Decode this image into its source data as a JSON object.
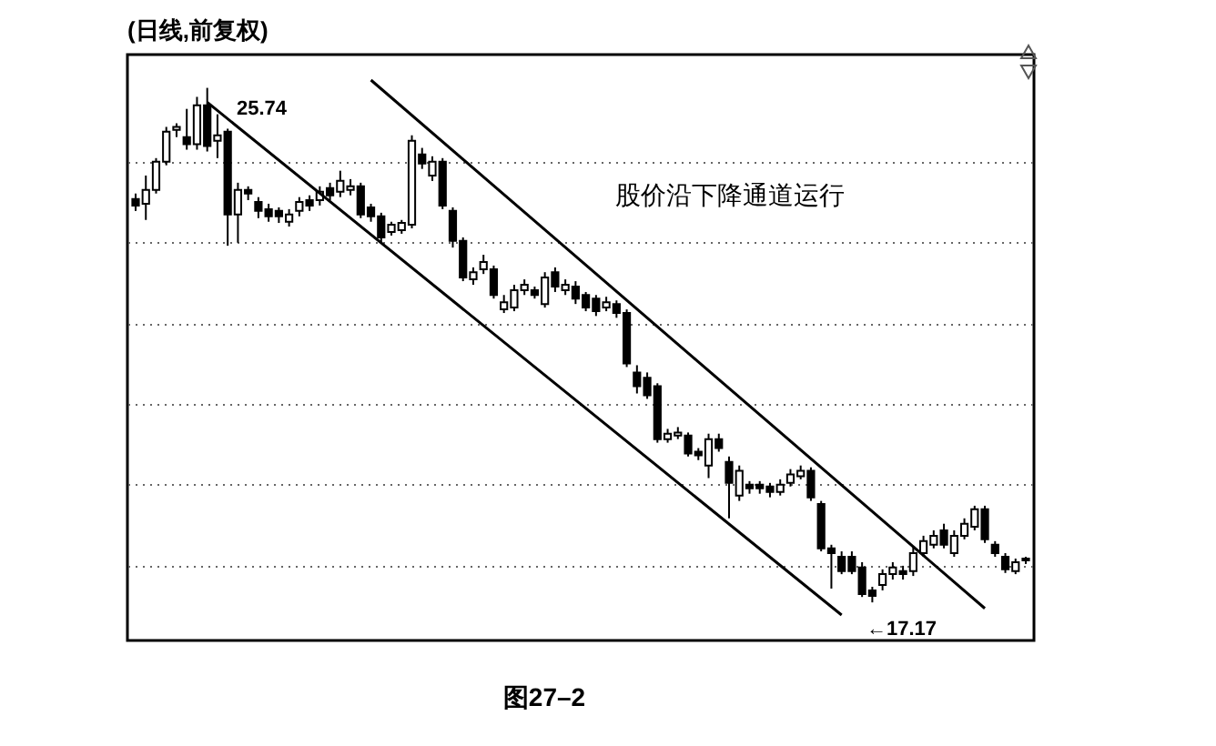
{
  "chart_data": {
    "type": "candlestick",
    "title": "(日线,前复权)",
    "color": "#000000",
    "grid": "y",
    "categories": [
      null,
      null,
      null,
      null,
      null,
      null,
      null,
      null,
      null,
      null,
      null,
      null,
      null,
      null,
      null,
      null,
      null,
      null,
      null,
      null,
      null,
      null,
      null,
      null,
      null,
      null,
      null,
      null,
      null,
      null,
      null,
      null,
      null,
      null,
      null,
      null,
      null,
      null,
      null,
      null,
      null,
      null,
      null,
      null,
      null,
      null,
      null,
      null,
      null,
      null,
      null,
      null,
      null,
      null,
      null,
      null,
      null,
      null,
      null,
      null,
      null,
      null,
      null,
      null,
      null,
      null,
      null,
      null,
      null,
      null,
      null,
      null,
      null,
      null,
      null,
      null,
      null,
      null,
      null,
      null,
      null,
      null,
      null,
      null,
      null,
      null,
      null,
      null
    ],
    "ohlc": [
      [
        23.89,
        23.98,
        23.69,
        23.78
      ],
      [
        23.81,
        24.28,
        23.54,
        24.04
      ],
      [
        24.04,
        24.57,
        23.98,
        24.51
      ],
      [
        24.51,
        25.09,
        24.45,
        25.01
      ],
      [
        25.04,
        25.15,
        24.92,
        25.09
      ],
      [
        24.92,
        25.39,
        24.71,
        24.8
      ],
      [
        24.8,
        25.59,
        24.71,
        25.45
      ],
      [
        25.45,
        25.74,
        24.68,
        24.77
      ],
      [
        24.86,
        25.3,
        24.57,
        24.95
      ],
      [
        25.01,
        25.06,
        23.11,
        23.63
      ],
      [
        23.63,
        24.16,
        23.16,
        24.04
      ],
      [
        24.04,
        24.1,
        23.87,
        23.98
      ],
      [
        23.84,
        23.92,
        23.57,
        23.69
      ],
      [
        23.72,
        23.81,
        23.51,
        23.6
      ],
      [
        23.69,
        23.75,
        23.49,
        23.6
      ],
      [
        23.51,
        23.72,
        23.43,
        23.63
      ],
      [
        23.69,
        23.92,
        23.6,
        23.84
      ],
      [
        23.87,
        23.95,
        23.69,
        23.78
      ],
      [
        23.87,
        24.1,
        23.78,
        24.01
      ],
      [
        24.07,
        24.16,
        23.87,
        23.95
      ],
      [
        24.01,
        24.36,
        23.92,
        24.19
      ],
      [
        24.04,
        24.22,
        23.95,
        24.1
      ],
      [
        24.1,
        24.16,
        23.57,
        23.63
      ],
      [
        23.75,
        23.81,
        23.51,
        23.6
      ],
      [
        23.6,
        23.66,
        23.16,
        23.25
      ],
      [
        23.34,
        23.51,
        23.28,
        23.46
      ],
      [
        23.37,
        23.54,
        23.31,
        23.49
      ],
      [
        23.46,
        24.95,
        23.4,
        24.86
      ],
      [
        24.63,
        24.74,
        24.39,
        24.48
      ],
      [
        24.28,
        24.6,
        24.19,
        24.51
      ],
      [
        24.51,
        24.57,
        23.72,
        23.78
      ],
      [
        23.69,
        23.75,
        23.08,
        23.19
      ],
      [
        23.19,
        23.25,
        22.52,
        22.58
      ],
      [
        22.55,
        22.75,
        22.46,
        22.67
      ],
      [
        22.72,
        22.96,
        22.64,
        22.84
      ],
      [
        22.72,
        22.78,
        22.23,
        22.29
      ],
      [
        22.05,
        22.29,
        21.99,
        22.17
      ],
      [
        22.08,
        22.46,
        22.02,
        22.37
      ],
      [
        22.37,
        22.55,
        22.29,
        22.46
      ],
      [
        22.37,
        22.43,
        22.23,
        22.29
      ],
      [
        22.14,
        22.67,
        22.08,
        22.58
      ],
      [
        22.67,
        22.75,
        22.34,
        22.43
      ],
      [
        22.37,
        22.55,
        22.29,
        22.46
      ],
      [
        22.43,
        22.52,
        22.14,
        22.23
      ],
      [
        22.29,
        22.34,
        22.02,
        22.08
      ],
      [
        22.23,
        22.29,
        21.94,
        22.02
      ],
      [
        22.08,
        22.26,
        22.02,
        22.17
      ],
      [
        22.14,
        22.2,
        21.91,
        21.99
      ],
      [
        21.99,
        22.05,
        21.09,
        21.15
      ],
      [
        21.0,
        21.12,
        20.65,
        20.77
      ],
      [
        20.91,
        21.0,
        20.56,
        20.62
      ],
      [
        20.77,
        20.82,
        19.83,
        19.89
      ],
      [
        19.89,
        20.06,
        19.83,
        19.98
      ],
      [
        19.95,
        20.09,
        19.89,
        20.0
      ],
      [
        19.95,
        20.0,
        19.6,
        19.65
      ],
      [
        19.68,
        19.74,
        19.54,
        19.62
      ],
      [
        19.45,
        19.98,
        19.24,
        19.89
      ],
      [
        19.89,
        19.98,
        19.68,
        19.74
      ],
      [
        19.51,
        19.6,
        18.57,
        19.16
      ],
      [
        18.95,
        19.45,
        18.86,
        19.36
      ],
      [
        19.13,
        19.19,
        18.98,
        19.07
      ],
      [
        19.13,
        19.19,
        18.98,
        19.07
      ],
      [
        19.1,
        19.16,
        18.92,
        19.01
      ],
      [
        19.01,
        19.22,
        18.95,
        19.13
      ],
      [
        19.16,
        19.39,
        19.1,
        19.3
      ],
      [
        19.27,
        19.45,
        19.22,
        19.36
      ],
      [
        19.36,
        19.42,
        18.86,
        18.92
      ],
      [
        18.81,
        18.86,
        18.02,
        18.07
      ],
      [
        18.07,
        18.13,
        17.4,
        17.99
      ],
      [
        17.93,
        18.02,
        17.64,
        17.69
      ],
      [
        17.93,
        18.02,
        17.64,
        17.69
      ],
      [
        17.75,
        17.84,
        17.26,
        17.31
      ],
      [
        17.37,
        17.43,
        17.17,
        17.28
      ],
      [
        17.46,
        17.72,
        17.37,
        17.64
      ],
      [
        17.64,
        17.84,
        17.55,
        17.75
      ],
      [
        17.69,
        17.78,
        17.55,
        17.64
      ],
      [
        17.69,
        18.1,
        17.61,
        17.99
      ],
      [
        17.99,
        18.28,
        17.93,
        18.19
      ],
      [
        18.13,
        18.37,
        18.07,
        18.28
      ],
      [
        18.37,
        18.48,
        18.07,
        18.13
      ],
      [
        17.99,
        18.37,
        17.93,
        18.28
      ],
      [
        18.28,
        18.57,
        18.22,
        18.48
      ],
      [
        18.43,
        18.78,
        18.37,
        18.72
      ],
      [
        18.72,
        18.78,
        18.16,
        18.22
      ],
      [
        18.13,
        18.19,
        17.93,
        17.99
      ],
      [
        17.93,
        17.99,
        17.66,
        17.72
      ],
      [
        17.69,
        17.9,
        17.64,
        17.84
      ],
      [
        17.87,
        17.93,
        17.81,
        17.9
      ]
    ],
    "series": [
      {
        "type": "line",
        "color": "#000000",
        "values": [
          null,
          null,
          null,
          null,
          null,
          null,
          null,
          null,
          null,
          null,
          null,
          null,
          null,
          null,
          null,
          null,
          null,
          null,
          null,
          null,
          null,
          null,
          null,
          25.87,
          null,
          null,
          null,
          null,
          null,
          null,
          null,
          null,
          null,
          null,
          null,
          null,
          null,
          null,
          null,
          null,
          null,
          null,
          null,
          null,
          null,
          null,
          null,
          null,
          null,
          null,
          null,
          null,
          null,
          null,
          null,
          null,
          null,
          null,
          null,
          null,
          null,
          null,
          null,
          null,
          null,
          null,
          null,
          null,
          null,
          null,
          null,
          null,
          null,
          null,
          null,
          null,
          null,
          null,
          null,
          null,
          null,
          null,
          null,
          17.07,
          null,
          null,
          null,
          null
        ]
      },
      {
        "type": "line",
        "color": "#000000",
        "values": [
          null,
          null,
          null,
          null,
          null,
          null,
          null,
          25.5,
          null,
          null,
          null,
          null,
          null,
          null,
          null,
          null,
          null,
          null,
          null,
          null,
          null,
          null,
          null,
          null,
          null,
          null,
          null,
          null,
          null,
          null,
          null,
          null,
          null,
          null,
          null,
          null,
          null,
          null,
          null,
          null,
          null,
          null,
          null,
          null,
          null,
          null,
          null,
          null,
          null,
          null,
          null,
          null,
          null,
          null,
          null,
          null,
          null,
          null,
          null,
          null,
          null,
          null,
          null,
          null,
          null,
          null,
          null,
          null,
          null,
          16.96,
          null,
          null,
          null,
          null,
          null,
          null,
          null,
          null,
          null,
          null,
          null,
          null,
          null,
          null,
          null,
          null,
          null,
          null
        ]
      }
    ],
    "yticks": [
      {
        "value": 24.51,
        "label": null
      },
      {
        "value": 23.16,
        "label": null
      },
      {
        "value": 21.82,
        "label": null
      },
      {
        "value": 20.47,
        "label": null
      },
      {
        "value": 19.13,
        "label": null
      },
      {
        "value": 17.78,
        "label": null
      }
    ],
    "annotations": [
      "25.74",
      "←17.17",
      "股价沿下降通道运行",
      "图27–2"
    ]
  }
}
